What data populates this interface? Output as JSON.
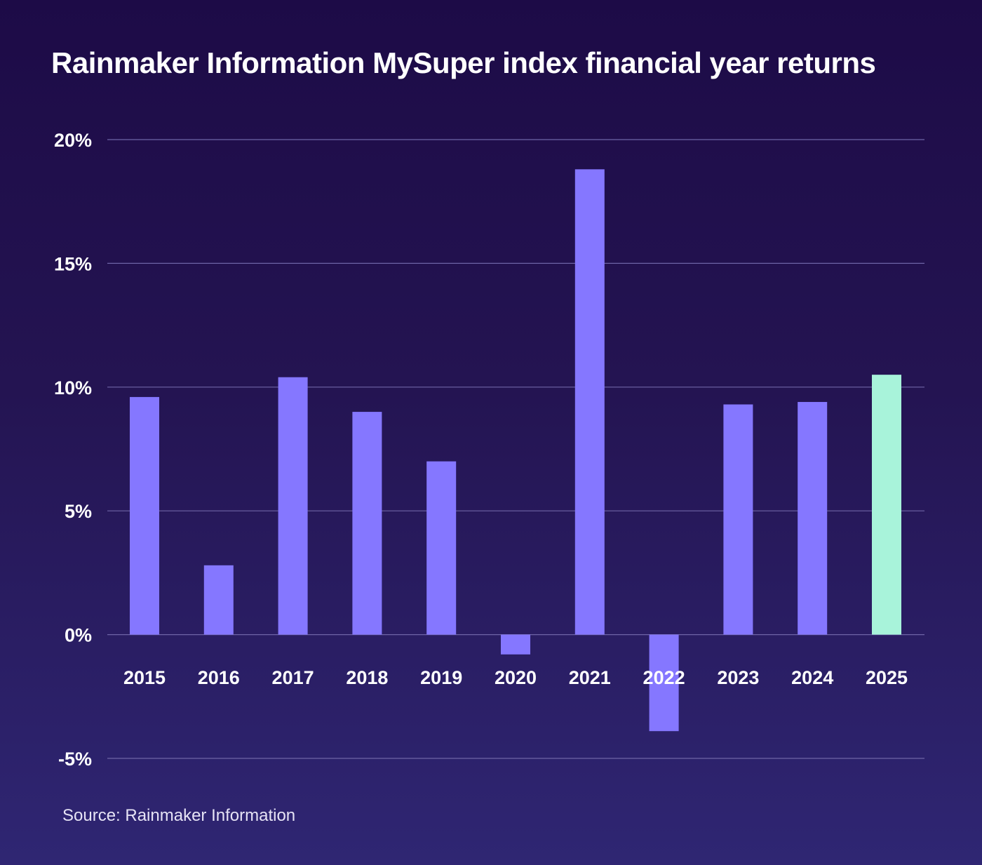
{
  "chart_data": {
    "type": "bar",
    "title": "Rainmaker Information MySuper index financial year returns",
    "source": "Source: Rainmaker Information",
    "categories": [
      "2015",
      "2016",
      "2017",
      "2018",
      "2019",
      "2020",
      "2021",
      "2022",
      "2023",
      "2024",
      "2025"
    ],
    "values": [
      9.6,
      2.8,
      10.4,
      9.0,
      7.0,
      -0.8,
      18.8,
      -3.9,
      9.3,
      9.4,
      10.5
    ],
    "highlight_category": "2025",
    "y_ticks": [
      20,
      15,
      10,
      5,
      0,
      -5
    ],
    "y_tick_labels": [
      "20%",
      "15%",
      "10%",
      "5%",
      "0%",
      "-5%"
    ],
    "ylim": [
      -5,
      20
    ],
    "grid": true,
    "colors": {
      "bar": "#8577ff",
      "highlight": "#a8f3da",
      "grid": "#6e64a6"
    }
  }
}
